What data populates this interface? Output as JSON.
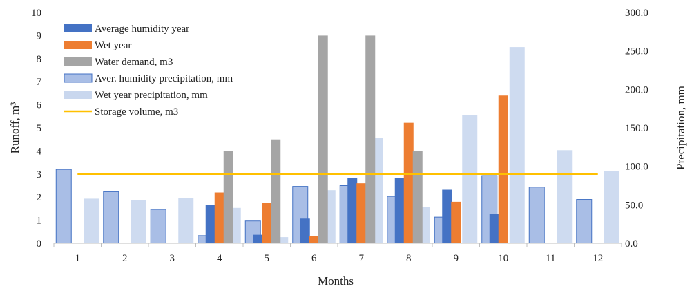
{
  "chart_data": {
    "type": "bar",
    "categories": [
      "1",
      "2",
      "3",
      "4",
      "5",
      "6",
      "7",
      "8",
      "9",
      "10",
      "11",
      "12"
    ],
    "xlabel": "Months",
    "ylabel_left": "Runoff, m³",
    "ylabel_right": "Precipitation, mm",
    "ylim_left": [
      0,
      10
    ],
    "ylim_right": [
      0,
      300
    ],
    "yticks_left": [
      "0",
      "1",
      "2",
      "3",
      "4",
      "5",
      "6",
      "7",
      "8",
      "9",
      "10"
    ],
    "yticks_right": [
      "0.0",
      "50.0",
      "100.0",
      "150.0",
      "200.0",
      "250.0",
      "300.0"
    ],
    "legend_position": "top-left",
    "series": [
      {
        "name": "Average humidity year",
        "axis": "left",
        "kind": "bar",
        "color": "#4472C4",
        "values": [
          0,
          0,
          0,
          1.65,
          0.37,
          1.07,
          2.82,
          2.82,
          2.32,
          1.27,
          0,
          0
        ]
      },
      {
        "name": "Wet year",
        "axis": "left",
        "kind": "bar",
        "color": "#ED7D31",
        "values": [
          0,
          0,
          0,
          2.2,
          1.75,
          0.3,
          2.6,
          5.22,
          1.8,
          6.4,
          0,
          0
        ]
      },
      {
        "name": "Water demand, m3",
        "axis": "left",
        "kind": "bar",
        "color": "#A5A5A5",
        "values": [
          0,
          0,
          0,
          4,
          4.5,
          9,
          9,
          4,
          0,
          0,
          0,
          0
        ]
      },
      {
        "name": "Aver. humidity precipitation, mm",
        "axis": "right",
        "kind": "bar",
        "color": "#A9BEE6",
        "edge": "#4472C4",
        "values": [
          96,
          67,
          44,
          10,
          29,
          74,
          75,
          61,
          34,
          88,
          73,
          57
        ]
      },
      {
        "name": "Wet year precipitation, mm",
        "axis": "right",
        "kind": "bar",
        "color": "#C9D7EE",
        "values": [
          58,
          56,
          59,
          46,
          8,
          69,
          137,
          47,
          167,
          255,
          121,
          94
        ]
      },
      {
        "name": "Storage volume, m3",
        "axis": "left",
        "kind": "line",
        "color": "#FFC000",
        "values": [
          3,
          3,
          3,
          3,
          3,
          3,
          3,
          3,
          3,
          3,
          3,
          3
        ]
      }
    ]
  }
}
